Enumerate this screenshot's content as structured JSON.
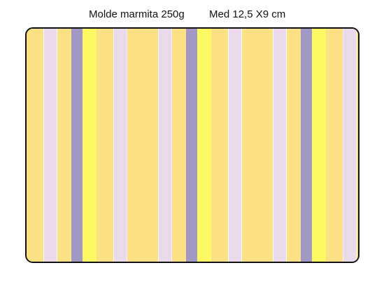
{
  "label": {
    "name": "Molde marmita 250g",
    "size": "Med 12,5 X9 cm"
  },
  "colors": {
    "border": "#111111",
    "stripe_pattern": [
      "#fbe084",
      "#eadaeb",
      "#fbe084",
      "#a199c3",
      "#fcf962",
      "#fbe084",
      "#eadaeb",
      "#fbe084"
    ]
  }
}
